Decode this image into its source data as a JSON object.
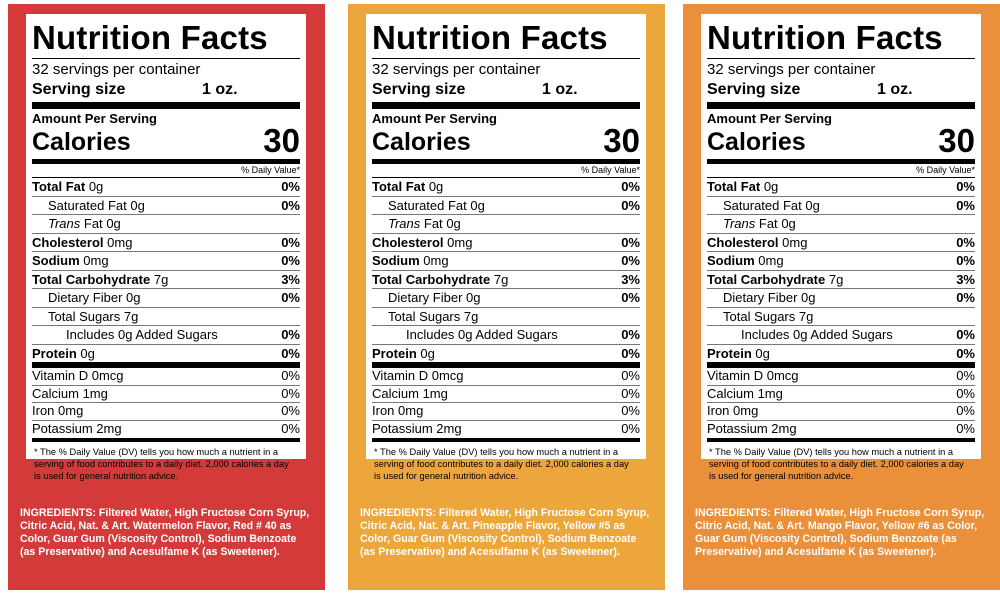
{
  "panels": [
    {
      "bg": "#d43a3a",
      "title": "Nutrition Facts",
      "servings": "32 servings per container",
      "serving_size_label": "Serving size",
      "serving_size_value": "1 oz.",
      "amount_per_serving": "Amount Per Serving",
      "calories_label": "Calories",
      "calories_value": "30",
      "dv_header": "% Daily Value*",
      "nutrients": {
        "total_fat": {
          "name": "Total Fat",
          "amount": "0g",
          "dv": "0%"
        },
        "saturated_fat": {
          "name": "Saturated Fat",
          "amount": "0g",
          "dv": "0%"
        },
        "trans_fat": {
          "name": "Trans",
          "suffix": "Fat",
          "amount": "0g"
        },
        "cholesterol": {
          "name": "Cholesterol",
          "amount": "0mg",
          "dv": "0%"
        },
        "sodium": {
          "name": "Sodium",
          "amount": "0mg",
          "dv": "0%"
        },
        "total_carb": {
          "name": "Total Carbohydrate",
          "amount": "7g",
          "dv": "3%"
        },
        "fiber": {
          "name": "Dietary Fiber",
          "amount": "0g",
          "dv": "0%"
        },
        "total_sugars": {
          "name": "Total Sugars",
          "amount": "7g"
        },
        "added_sugars": {
          "text": "Includes 0g Added Sugars",
          "dv": "0%"
        },
        "protein": {
          "name": "Protein",
          "amount": "0g",
          "dv": "0%"
        }
      },
      "vitamins": [
        {
          "text": "Vitamin D 0mcg",
          "dv": "0%"
        },
        {
          "text": "Calcium 1mg",
          "dv": "0%"
        },
        {
          "text": "Iron 0mg",
          "dv": "0%"
        },
        {
          "text": "Potassium 2mg",
          "dv": "0%"
        }
      ],
      "footnote": "* The % Daily Value (DV) tells you how much a nutrient in a serving of food contributes to a daily diet. 2,000 calories a day is used for general nutrition advice.",
      "ingredients": "INGREDIENTS: Filtered Water, High Fructose Corn Syrup, Citric Acid, Nat. & Art. Watermelon Flavor, Red # 40 as Color, Guar Gum (Viscosity Control), Sodium Benzoate (as Preservative) and Acesulfame K (as Sweetener)."
    },
    {
      "bg": "#eda63b",
      "title": "Nutrition Facts",
      "servings": "32 servings per container",
      "serving_size_label": "Serving size",
      "serving_size_value": "1 oz.",
      "amount_per_serving": "Amount Per Serving",
      "calories_label": "Calories",
      "calories_value": "30",
      "dv_header": "% Daily Value*",
      "nutrients": {
        "total_fat": {
          "name": "Total Fat",
          "amount": "0g",
          "dv": "0%"
        },
        "saturated_fat": {
          "name": "Saturated Fat",
          "amount": "0g",
          "dv": "0%"
        },
        "trans_fat": {
          "name": "Trans",
          "suffix": "Fat",
          "amount": "0g"
        },
        "cholesterol": {
          "name": "Cholesterol",
          "amount": "0mg",
          "dv": "0%"
        },
        "sodium": {
          "name": "Sodium",
          "amount": "0mg",
          "dv": "0%"
        },
        "total_carb": {
          "name": "Total Carbohydrate",
          "amount": "7g",
          "dv": "3%"
        },
        "fiber": {
          "name": "Dietary Fiber",
          "amount": "0g",
          "dv": "0%"
        },
        "total_sugars": {
          "name": "Total Sugars",
          "amount": "7g"
        },
        "added_sugars": {
          "text": "Includes 0g Added Sugars",
          "dv": "0%"
        },
        "protein": {
          "name": "Protein",
          "amount": "0g",
          "dv": "0%"
        }
      },
      "vitamins": [
        {
          "text": "Vitamin D 0mcg",
          "dv": "0%"
        },
        {
          "text": "Calcium 1mg",
          "dv": "0%"
        },
        {
          "text": "Iron 0mg",
          "dv": "0%"
        },
        {
          "text": "Potassium 2mg",
          "dv": "0%"
        }
      ],
      "footnote": "* The % Daily Value (DV) tells you how much a nutrient in a serving of food contributes to a daily diet. 2,000 calories a day is used for general nutrition advice.",
      "ingredients": "INGREDIENTS: Filtered Water, High Fructose Corn Syrup, Citric Acid, Nat. & Art. Pineapple Flavor, Yellow #5 as Color, Guar Gum (Viscosity Control), Sodium Benzoate (as Preservative) and Acesulfame K (as Sweetener)."
    },
    {
      "bg": "#ea8f3a",
      "title": "Nutrition Facts",
      "servings": "32 servings per container",
      "serving_size_label": "Serving size",
      "serving_size_value": "1 oz.",
      "amount_per_serving": "Amount Per Serving",
      "calories_label": "Calories",
      "calories_value": "30",
      "dv_header": "% Daily Value*",
      "nutrients": {
        "total_fat": {
          "name": "Total Fat",
          "amount": "0g",
          "dv": "0%"
        },
        "saturated_fat": {
          "name": "Saturated Fat",
          "amount": "0g",
          "dv": "0%"
        },
        "trans_fat": {
          "name": "Trans",
          "suffix": "Fat",
          "amount": "0g"
        },
        "cholesterol": {
          "name": "Cholesterol",
          "amount": "0mg",
          "dv": "0%"
        },
        "sodium": {
          "name": "Sodium",
          "amount": "0mg",
          "dv": "0%"
        },
        "total_carb": {
          "name": "Total Carbohydrate",
          "amount": "7g",
          "dv": "3%"
        },
        "fiber": {
          "name": "Dietary Fiber",
          "amount": "0g",
          "dv": "0%"
        },
        "total_sugars": {
          "name": "Total Sugars",
          "amount": "7g"
        },
        "added_sugars": {
          "text": "Includes 0g Added Sugars",
          "dv": "0%"
        },
        "protein": {
          "name": "Protein",
          "amount": "0g",
          "dv": "0%"
        }
      },
      "vitamins": [
        {
          "text": "Vitamin D 0mcg",
          "dv": "0%"
        },
        {
          "text": "Calcium 1mg",
          "dv": "0%"
        },
        {
          "text": "Iron 0mg",
          "dv": "0%"
        },
        {
          "text": "Potassium 2mg",
          "dv": "0%"
        }
      ],
      "footnote": "* The % Daily Value (DV) tells you how much a nutrient in a serving of food contributes to a daily diet. 2,000 calories a day is used for general nutrition advice.",
      "ingredients": "INGREDIENTS: Filtered Water, High Fructose Corn Syrup, Citric Acid, Nat. & Art. Mango Flavor, Yellow #6 as Color, Guar Gum (Viscosity Control), Sodium Benzoate (as Preservative) and Acesulfame K (as Sweetener)."
    }
  ]
}
